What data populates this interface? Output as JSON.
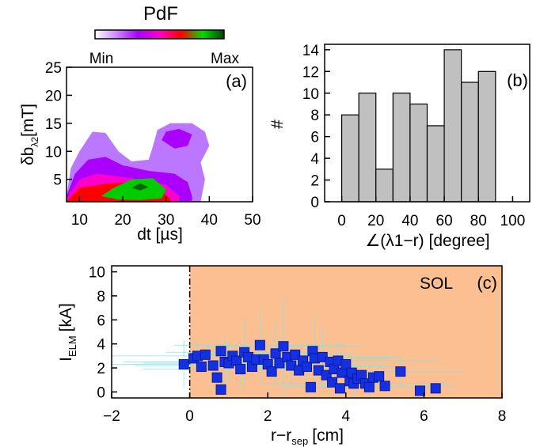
{
  "colorbar": {
    "title": "PdF",
    "min_label": "Min",
    "max_label": "Max",
    "colors": [
      "#ffffff",
      "#cc88ff",
      "#aa00ff",
      "#ff00cc",
      "#ff0000",
      "#00dd00",
      "#004400"
    ]
  },
  "chart_data": [
    {
      "panel": "(a)",
      "type": "heatmap",
      "xlabel": "dt [µs]",
      "ylabel_main": "δb",
      "ylabel_sub": "λ2",
      "ylabel_tail": "[mT]",
      "xlim": [
        7,
        50
      ],
      "ylim": [
        1,
        25
      ],
      "xticks": [
        10,
        20,
        30,
        40,
        50
      ],
      "yticks": [
        5,
        10,
        15,
        20,
        25
      ],
      "levels": [
        {
          "level": "low",
          "color": "#bb77ff",
          "region": [
            [
              7,
              2
            ],
            [
              8,
              7
            ],
            [
              10,
              10
            ],
            [
              13,
              13.5
            ],
            [
              16,
              13.3
            ],
            [
              19,
              10
            ],
            [
              22,
              8.2
            ],
            [
              26,
              8.5
            ],
            [
              27,
              11
            ],
            [
              28,
              13.8
            ],
            [
              31,
              15
            ],
            [
              36,
              15
            ],
            [
              39,
              13.5
            ],
            [
              40,
              11
            ],
            [
              38,
              8
            ],
            [
              39,
              5
            ],
            [
              38,
              1
            ],
            [
              7,
              1
            ]
          ]
        },
        {
          "level": "mid-low",
          "color": "#aa00ff",
          "region": [
            [
              7,
              2
            ],
            [
              9,
              6
            ],
            [
              12,
              8.5
            ],
            [
              16,
              9
            ],
            [
              20,
              7.5
            ],
            [
              26,
              6.5
            ],
            [
              32,
              6
            ],
            [
              35,
              4.5
            ],
            [
              36,
              2
            ],
            [
              36,
              1
            ],
            [
              7,
              1
            ]
          ]
        },
        {
          "level": "mid-low",
          "color": "#aa00ff",
          "region": [
            [
              29,
              12
            ],
            [
              32,
              10.5
            ],
            [
              35,
              11
            ],
            [
              36,
              13
            ],
            [
              33,
              14
            ],
            [
              30,
              13.5
            ]
          ]
        },
        {
          "level": "mid",
          "color": "#ff00cc",
          "region": [
            [
              7,
              1.5
            ],
            [
              10,
              5
            ],
            [
              14,
              6
            ],
            [
              19,
              5.5
            ],
            [
              24,
              5
            ],
            [
              30,
              4
            ],
            [
              33,
              2
            ],
            [
              33,
              1
            ],
            [
              7,
              1
            ]
          ]
        },
        {
          "level": "mid-high",
          "color": "#ff0000",
          "region": [
            [
              7,
              1
            ],
            [
              10,
              3.5
            ],
            [
              16,
              4.2
            ],
            [
              22,
              4.5
            ],
            [
              28,
              3.5
            ],
            [
              31,
              1.5
            ],
            [
              31,
              1
            ]
          ]
        },
        {
          "level": "high",
          "color": "#00cc00",
          "region": [
            [
              15,
              2
            ],
            [
              18,
              3.5
            ],
            [
              22,
              5
            ],
            [
              27,
              5.2
            ],
            [
              30,
              3.2
            ],
            [
              29,
              1.6
            ],
            [
              24,
              1.3
            ],
            [
              19,
              1.4
            ]
          ]
        },
        {
          "level": "peak",
          "color": "#006600",
          "region": [
            [
              22,
              3.5
            ],
            [
              24,
              4.3
            ],
            [
              26,
              3.6
            ],
            [
              24,
              3
            ]
          ]
        }
      ]
    },
    {
      "panel": "(b)",
      "type": "bar",
      "xlabel": "∠(λ1−r) [degree]",
      "ylabel": "#",
      "xlim": [
        -10,
        110
      ],
      "ylim": [
        0,
        14.5
      ],
      "xticks": [
        0,
        20,
        40,
        60,
        80,
        100
      ],
      "yticks": [
        0,
        2,
        4,
        6,
        8,
        10,
        12,
        14
      ],
      "bin_width": 10,
      "bin_starts": [
        0,
        10,
        20,
        30,
        40,
        50,
        60,
        70,
        80
      ],
      "values": [
        8,
        10,
        3,
        10,
        9,
        7,
        14,
        11,
        12
      ],
      "bar_color": "#c0c0c0"
    },
    {
      "panel": "(c)",
      "type": "scatter",
      "xlabel_main": "r−r",
      "xlabel_sub": "sep",
      "xlabel_tail": "[cm]",
      "ylabel_main": "I",
      "ylabel_sub": "ELM",
      "ylabel_tail": "[kA]",
      "region_label": "SOL",
      "xlim": [
        -2,
        8
      ],
      "ylim": [
        -0.5,
        10.5
      ],
      "xticks": [
        -2,
        0,
        2,
        4,
        6,
        8
      ],
      "xtick_labels": [
        "−2",
        "0",
        "2",
        "4",
        "6",
        "8"
      ],
      "yticks": [
        0,
        2,
        4,
        6,
        8,
        10
      ],
      "separatrix_x": 0,
      "sol_color": "#fbbf91",
      "marker_color": "#1530e0",
      "errorbar_color": "#80e6e6",
      "points": [
        [
          -0.15,
          2.3
        ],
        [
          0.1,
          2.8
        ],
        [
          0.2,
          3.0
        ],
        [
          0.3,
          2.1
        ],
        [
          0.4,
          3.1
        ],
        [
          0.6,
          2.2
        ],
        [
          0.7,
          1.2
        ],
        [
          0.8,
          0.2
        ],
        [
          0.8,
          3.4
        ],
        [
          0.9,
          2.5
        ],
        [
          1.0,
          2.4
        ],
        [
          1.1,
          3.0
        ],
        [
          1.2,
          2.6
        ],
        [
          1.3,
          1.9
        ],
        [
          1.4,
          3.3
        ],
        [
          1.5,
          2.9
        ],
        [
          1.6,
          2.1
        ],
        [
          1.7,
          2.7
        ],
        [
          1.8,
          3.9
        ],
        [
          1.9,
          2.7
        ],
        [
          2.0,
          2.3
        ],
        [
          2.1,
          1.7
        ],
        [
          2.2,
          3.2
        ],
        [
          2.3,
          2.4
        ],
        [
          2.4,
          3.8
        ],
        [
          2.5,
          2.9
        ],
        [
          2.6,
          2.2
        ],
        [
          2.7,
          3.1
        ],
        [
          2.8,
          1.8
        ],
        [
          2.9,
          2.6
        ],
        [
          3.0,
          2.1
        ],
        [
          3.1,
          0.4
        ],
        [
          3.15,
          3.4
        ],
        [
          3.2,
          2.8
        ],
        [
          3.3,
          1.8
        ],
        [
          3.4,
          2.9
        ],
        [
          3.5,
          1.4
        ],
        [
          3.6,
          2.5
        ],
        [
          3.65,
          0.8
        ],
        [
          3.7,
          1.9
        ],
        [
          3.8,
          2.6
        ],
        [
          3.85,
          0.3
        ],
        [
          3.9,
          1.6
        ],
        [
          4.0,
          2.3
        ],
        [
          4.1,
          0.9
        ],
        [
          4.15,
          1.6
        ],
        [
          4.2,
          0.7
        ],
        [
          4.3,
          1.1
        ],
        [
          4.4,
          1.4
        ],
        [
          4.5,
          0.7
        ],
        [
          4.6,
          0.4
        ],
        [
          4.7,
          1.2
        ],
        [
          4.85,
          1.3
        ],
        [
          5.0,
          0.5
        ],
        [
          5.4,
          1.7
        ],
        [
          5.9,
          0.1
        ],
        [
          6.3,
          0.3
        ]
      ],
      "errorbars": [
        [
          -0.15,
          2.3,
          3.0,
          2.0
        ],
        [
          0.2,
          3.0,
          2.5,
          1.2
        ],
        [
          0.6,
          2.2,
          2.0,
          1.5
        ],
        [
          1.0,
          2.4,
          2.2,
          1.8
        ],
        [
          1.4,
          3.3,
          2.0,
          2.8
        ],
        [
          1.8,
          3.9,
          2.2,
          3.0
        ],
        [
          2.2,
          3.2,
          2.0,
          2.5
        ],
        [
          2.6,
          2.2,
          2.4,
          1.8
        ],
        [
          3.0,
          2.1,
          2.2,
          2.0
        ],
        [
          3.4,
          2.9,
          2.0,
          2.6
        ],
        [
          3.8,
          2.6,
          2.6,
          1.5
        ],
        [
          4.2,
          0.7,
          2.4,
          1.8
        ],
        [
          4.6,
          0.4,
          2.2,
          1.0
        ],
        [
          5.4,
          1.7,
          1.6,
          1.2
        ],
        [
          2.4,
          3.8,
          2.0,
          4.0
        ],
        [
          1.3,
          1.9,
          2.5,
          1.6
        ],
        [
          3.2,
          2.8,
          1.9,
          3.5
        ],
        [
          0.9,
          2.5,
          2.6,
          2.2
        ]
      ]
    }
  ]
}
